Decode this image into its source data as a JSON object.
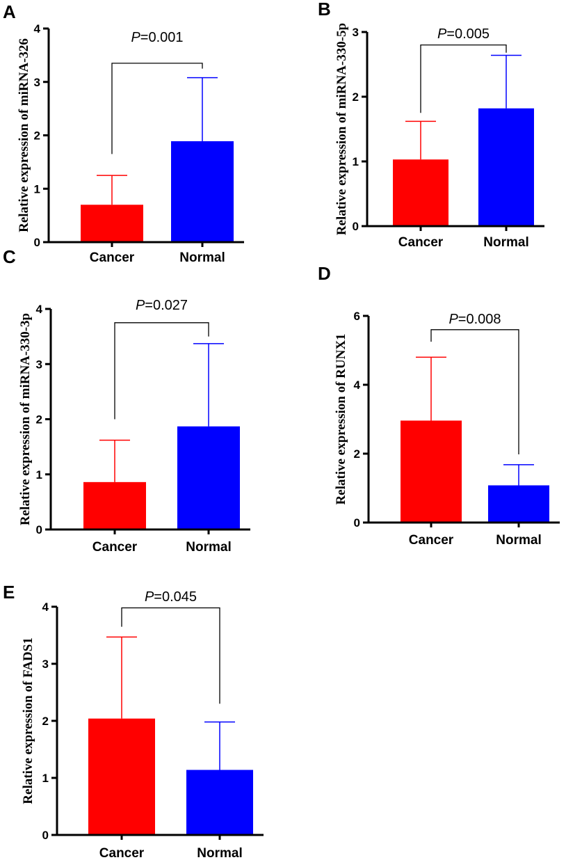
{
  "colors": {
    "cancer": "#ff0000",
    "normal": "#0000ff"
  },
  "chart_data": [
    {
      "type": "bar",
      "panel": "A",
      "categories": [
        "Cancer",
        "Normal"
      ],
      "values": [
        0.7,
        1.89
      ],
      "error_upper": [
        1.25,
        3.08
      ],
      "ylabel": "Relative expression of miRNA-326",
      "ylim": [
        0,
        4
      ],
      "yticks": [
        0,
        1,
        2,
        3,
        4
      ],
      "yticklabels": [
        "0",
        "1",
        "2",
        "3",
        "4"
      ],
      "p_prefix": "P",
      "p_value": "=0.001",
      "bracket_bottom_left": 1.65,
      "bracket_bottom_right": 3.25,
      "bracket_top": 3.35
    },
    {
      "type": "bar",
      "panel": "B",
      "categories": [
        "Cancer",
        "Normal"
      ],
      "values": [
        1.03,
        1.82
      ],
      "error_upper": [
        1.62,
        2.64
      ],
      "ylabel": "Relative expression of miRNA-330-5p",
      "ylim": [
        0,
        3
      ],
      "yticks": [
        0,
        1,
        2,
        3
      ],
      "yticklabels": [
        "0",
        "1",
        "2",
        "3"
      ],
      "p_prefix": "P",
      "p_value": "=0.005",
      "bracket_bottom_left": 1.75,
      "bracket_bottom_right": 2.68,
      "bracket_top": 2.8
    },
    {
      "type": "bar",
      "panel": "C",
      "categories": [
        "Cancer",
        "Normal"
      ],
      "values": [
        0.86,
        1.87
      ],
      "error_upper": [
        1.62,
        3.37
      ],
      "ylabel": "Relative expression of miRNA-330-3p",
      "ylim": [
        0,
        4
      ],
      "yticks": [
        0,
        1,
        2,
        3,
        4
      ],
      "yticklabels": [
        "0",
        "1",
        "2",
        "3",
        "4"
      ],
      "p_prefix": "P",
      "p_value": "=0.027",
      "bracket_bottom_left": 2.0,
      "bracket_bottom_right": 3.5,
      "bracket_top": 3.75
    },
    {
      "type": "bar",
      "panel": "D",
      "categories": [
        "Cancer",
        "Normal"
      ],
      "values": [
        2.96,
        1.08
      ],
      "error_upper": [
        4.8,
        1.68
      ],
      "ylabel": "Relative expression of RUNX1",
      "ylim": [
        0,
        6
      ],
      "yticks": [
        0,
        2,
        4,
        6
      ],
      "yticklabels": [
        "0",
        "2",
        "4",
        "6"
      ],
      "p_prefix": "P",
      "p_value": "=0.008",
      "bracket_bottom_left": 5.25,
      "bracket_bottom_right": 1.98,
      "bracket_top": 5.6
    },
    {
      "type": "bar",
      "panel": "E",
      "categories": [
        "Cancer",
        "Normal"
      ],
      "values": [
        2.04,
        1.14
      ],
      "error_upper": [
        3.47,
        1.98
      ],
      "ylabel": "Relative expression of FADS1",
      "ylim": [
        0,
        4
      ],
      "yticks": [
        0,
        1,
        2,
        3,
        4
      ],
      "yticklabels": [
        "0",
        "1",
        "2",
        "3",
        "4"
      ],
      "p_prefix": "P",
      "p_value": "=0.045",
      "bracket_bottom_left": 3.65,
      "bracket_bottom_right": 2.3,
      "bracket_top": 3.98
    }
  ]
}
